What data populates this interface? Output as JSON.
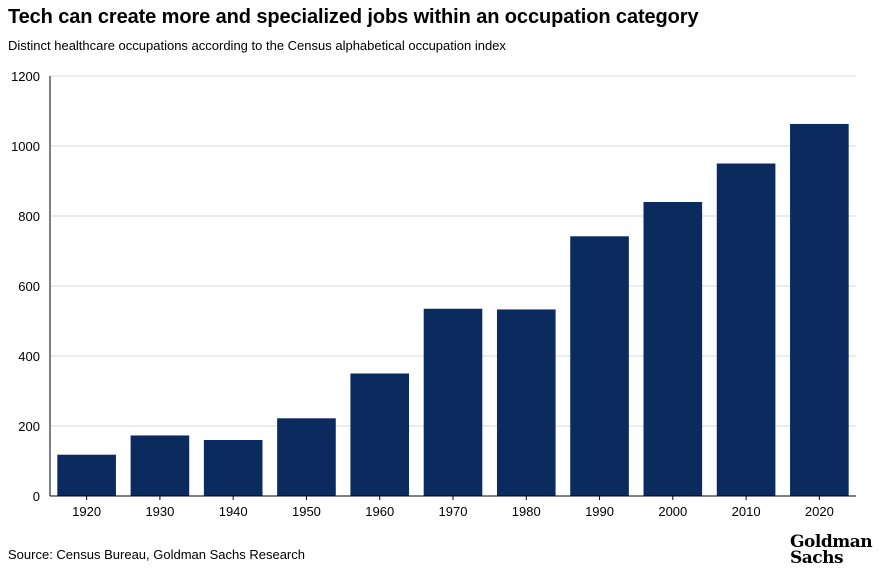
{
  "header": {
    "title": "Tech can create more and specialized jobs within an occupation category",
    "subtitle": "Distinct healthcare occupations according to the Census alphabetical occupation index"
  },
  "footer": {
    "source": "Source: Census Bureau, Goldman Sachs Research",
    "logo_line1": "Goldman",
    "logo_line2": "Sachs"
  },
  "chart_data": {
    "type": "bar",
    "title": "Tech can create more and specialized jobs within an occupation category",
    "subtitle": "Distinct healthcare occupations according to the Census alphabetical occupation index",
    "xlabel": "",
    "ylabel": "",
    "categories": [
      "1920",
      "1930",
      "1940",
      "1950",
      "1960",
      "1970",
      "1980",
      "1990",
      "2000",
      "2010",
      "2020"
    ],
    "values": [
      118,
      173,
      160,
      222,
      350,
      535,
      533,
      742,
      840,
      950,
      1063
    ],
    "ylim": [
      0,
      1200
    ],
    "yticks": [
      0,
      200,
      400,
      600,
      800,
      1000,
      1200
    ],
    "grid": true,
    "legend": "none",
    "bar_color": "#0b2a5e",
    "grid_color": "#d9d9d9"
  }
}
